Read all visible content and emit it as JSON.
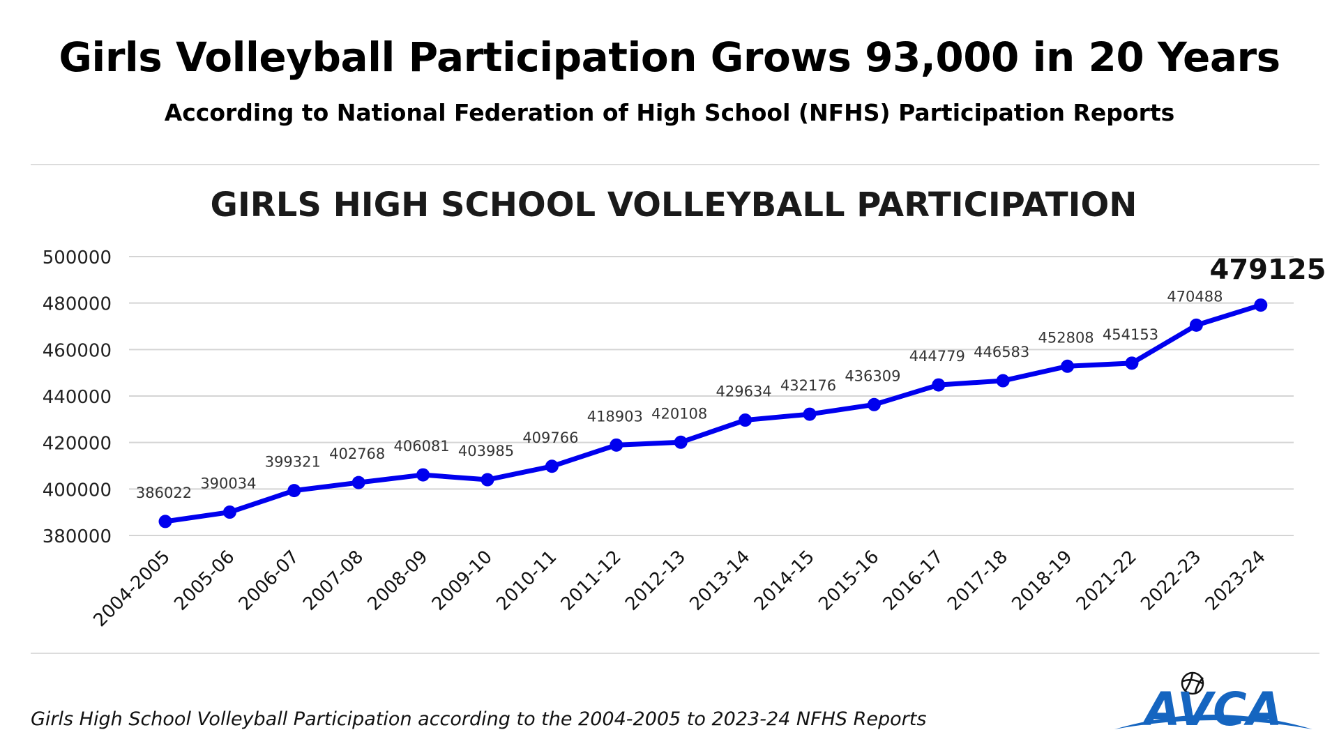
{
  "header": {
    "headline": "Girls Volleyball Participation Grows 93,000 in 20 Years",
    "subheadline": "According to National Federation of High School (NFHS) Participation Reports"
  },
  "caption": "Girls High School Volleyball Participation according to the 2004-2005 to 2023-24 NFHS Reports",
  "logo": {
    "text": "AVCA",
    "icon": "volleyball-icon",
    "color": "#1565c0"
  },
  "chart_data": {
    "type": "line",
    "title": "GIRLS HIGH SCHOOL VOLLEYBALL PARTICIPATION",
    "xlabel": "",
    "ylabel": "",
    "ylim": [
      380000,
      500000
    ],
    "yticks": [
      500000,
      480000,
      460000,
      440000,
      420000,
      400000,
      380000
    ],
    "grid": true,
    "legend": "none",
    "color": "#0000ee",
    "categories": [
      "2004-2005",
      "2005-06",
      "2006-07",
      "2007-08",
      "2008-09",
      "2009-10",
      "2010-11",
      "2011-12",
      "2012-13",
      "2013-14",
      "2014-15",
      "2015-16",
      "2016-17",
      "2017-18",
      "2018-19",
      "2021-22",
      "2022-23",
      "2023-24"
    ],
    "series": [
      {
        "values": [
          386022,
          390034,
          399321,
          402768,
          406081,
          403985,
          409766,
          418903,
          420108,
          429634,
          432176,
          436309,
          444779,
          446583,
          452808,
          454153,
          470488,
          479125
        ]
      }
    ],
    "highlight": {
      "category": "2023-24",
      "value": 479125
    }
  }
}
